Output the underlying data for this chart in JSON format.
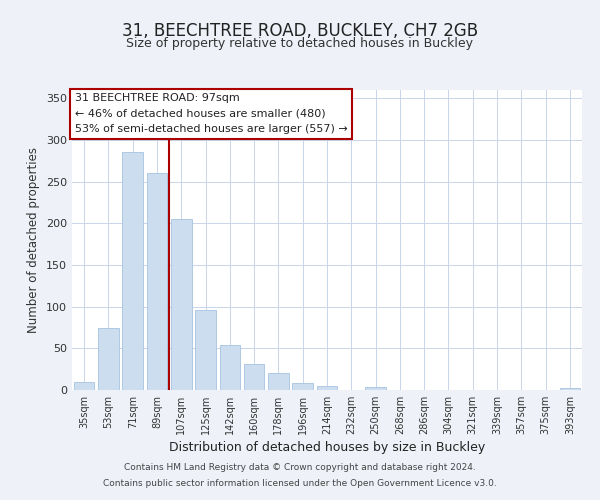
{
  "title": "31, BEECHTREE ROAD, BUCKLEY, CH7 2GB",
  "subtitle": "Size of property relative to detached houses in Buckley",
  "xlabel": "Distribution of detached houses by size in Buckley",
  "ylabel": "Number of detached properties",
  "bar_labels": [
    "35sqm",
    "53sqm",
    "71sqm",
    "89sqm",
    "107sqm",
    "125sqm",
    "142sqm",
    "160sqm",
    "178sqm",
    "196sqm",
    "214sqm",
    "232sqm",
    "250sqm",
    "268sqm",
    "286sqm",
    "304sqm",
    "321sqm",
    "339sqm",
    "357sqm",
    "375sqm",
    "393sqm"
  ],
  "bar_values": [
    10,
    74,
    286,
    260,
    205,
    96,
    54,
    31,
    21,
    9,
    5,
    0,
    4,
    0,
    0,
    0,
    0,
    0,
    0,
    0,
    2
  ],
  "bar_color": "#ccddf0",
  "bar_edge_color": "#a8c4e0",
  "vline_color": "#aa0000",
  "vline_x_index": 3,
  "ylim": [
    0,
    360
  ],
  "yticks": [
    0,
    50,
    100,
    150,
    200,
    250,
    300,
    350
  ],
  "annotation_title": "31 BEECHTREE ROAD: 97sqm",
  "annotation_line1": "← 46% of detached houses are smaller (480)",
  "annotation_line2": "53% of semi-detached houses are larger (557) →",
  "footer_line1": "Contains HM Land Registry data © Crown copyright and database right 2024.",
  "footer_line2": "Contains public sector information licensed under the Open Government Licence v3.0.",
  "bg_color": "#eef2f8",
  "plot_bg_color": "#ffffff",
  "grid_color": "#c8d4e8"
}
